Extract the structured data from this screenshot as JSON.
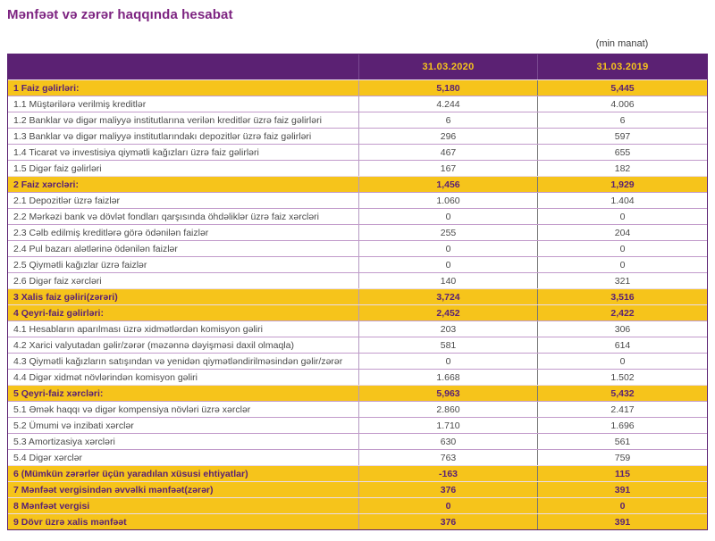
{
  "page_title": "Mənfəət və zərər haqqında hesabat",
  "unit_note": "(min manat)",
  "colors": {
    "header_purple": "#5b2173",
    "section_yellow": "#f6c41b",
    "title_purple": "#7d2481",
    "body_text": "#4a4a4a",
    "row_divider": "#c29bcb"
  },
  "table": {
    "columns": [
      "31.03.2020",
      "31.03.2019"
    ],
    "rows": [
      {
        "label": "1 Faiz gəlirləri:",
        "v2020": "5,180",
        "v2019": "5,445",
        "section": true
      },
      {
        "label": "1.1 Müştərilərə verilmiş kreditlər",
        "v2020": "4.244",
        "v2019": "4.006",
        "section": false
      },
      {
        "label": "1.2 Banklar və digər maliyyə institutlarına verilən kreditlər üzrə faiz gəlirləri",
        "v2020": "6",
        "v2019": "6",
        "section": false
      },
      {
        "label": "1.3 Banklar və digər maliyyə institutlarındakı depozitlər üzrə faiz gəlirləri",
        "v2020": "296",
        "v2019": "597",
        "section": false
      },
      {
        "label": "1.4 Ticarət və investisiya qiymətli kağızları üzrə faiz gəlirləri",
        "v2020": "467",
        "v2019": "655",
        "section": false
      },
      {
        "label": "1.5 Digər faiz gəlirləri",
        "v2020": "167",
        "v2019": "182",
        "section": false
      },
      {
        "label": "2 Faiz xərcləri:",
        "v2020": "1,456",
        "v2019": "1,929",
        "section": true
      },
      {
        "label": "2.1 Depozitlər üzrə faizlər",
        "v2020": "1.060",
        "v2019": "1.404",
        "section": false
      },
      {
        "label": "2.2 Mərkəzi bank və dövlət fondları qarşısında öhdəliklər üzrə faiz xərcləri",
        "v2020": "0",
        "v2019": "0",
        "section": false
      },
      {
        "label": "2.3 Cəlb edilmiş kreditlərə görə ödənilən faizlər",
        "v2020": "255",
        "v2019": "204",
        "section": false
      },
      {
        "label": "2.4 Pul bazarı alətlərinə ödənilən faizlər",
        "v2020": "0",
        "v2019": "0",
        "section": false
      },
      {
        "label": "2.5 Qiymətli kağızlar üzrə faizlər",
        "v2020": "0",
        "v2019": "0",
        "section": false
      },
      {
        "label": "2.6 Digər faiz xərcləri",
        "v2020": "140",
        "v2019": "321",
        "section": false
      },
      {
        "label": "3 Xalis faiz gəliri(zərəri)",
        "v2020": "3,724",
        "v2019": "3,516",
        "section": true
      },
      {
        "label": "4 Qeyri-faiz gəlirləri:",
        "v2020": "2,452",
        "v2019": "2,422",
        "section": true
      },
      {
        "label": "4.1 Hesabların aparılması üzrə xidmətlərdən komisyon gəliri",
        "v2020": "203",
        "v2019": "306",
        "section": false
      },
      {
        "label": "4.2 Xarici valyutadan gəlir/zərər (məzənnə dəyişməsi daxil olmaqla)",
        "v2020": "581",
        "v2019": "614",
        "section": false
      },
      {
        "label": "4.3 Qiymətli kağızların satışından və yenidən qiymətləndirilməsindən gəlir/zərər",
        "v2020": "0",
        "v2019": "0",
        "section": false
      },
      {
        "label": "4.4 Digər xidmət növlərindən komisyon gəliri",
        "v2020": "1.668",
        "v2019": "1.502",
        "section": false
      },
      {
        "label": "5 Qeyri-faiz xərcləri:",
        "v2020": "5,963",
        "v2019": "5,432",
        "section": true
      },
      {
        "label": "5.1 Əmək haqqı və digər kompensiya növləri üzrə xərclər",
        "v2020": "2.860",
        "v2019": "2.417",
        "section": false
      },
      {
        "label": "5.2 Ümumi və inzibati xərclər",
        "v2020": "1.710",
        "v2019": "1.696",
        "section": false
      },
      {
        "label": "5.3 Amortizasiya xərcləri",
        "v2020": "630",
        "v2019": "561",
        "section": false
      },
      {
        "label": "5.4 Digər xərclər",
        "v2020": "763",
        "v2019": "759",
        "section": false
      },
      {
        "label": "6 (Mümkün zərərlər üçün yaradılan xüsusi ehtiyatlar)",
        "v2020": "-163",
        "v2019": "115",
        "section": true
      },
      {
        "label": "7 Mənfəət vergisindən əvvəlki mənfəət(zərər)",
        "v2020": "376",
        "v2019": "391",
        "section": true
      },
      {
        "label": "8 Mənfəət vergisi",
        "v2020": "0",
        "v2019": "0",
        "section": true
      },
      {
        "label": "9 Dövr üzrə xalis mənfəət",
        "v2020": "376",
        "v2019": "391",
        "section": true
      }
    ]
  }
}
